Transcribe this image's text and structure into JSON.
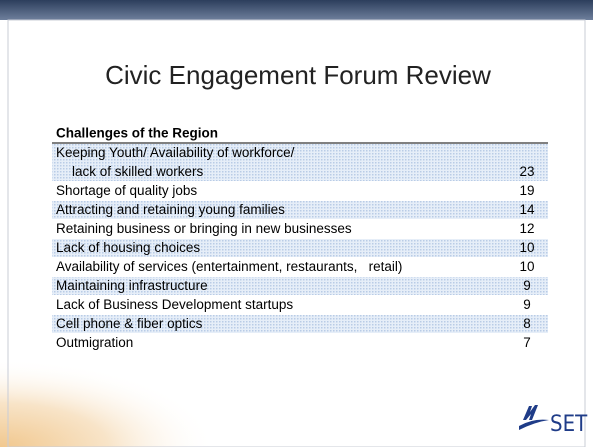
{
  "slide": {
    "title": "Civic Engagement Forum Review",
    "table": {
      "header": "Challenges of the Region",
      "rows": [
        {
          "lines": [
            "Keeping Youth/ Availability of workforce/",
            "lack of skilled workers"
          ],
          "count": "23"
        },
        {
          "lines": [
            "Shortage of quality jobs"
          ],
          "count": "19"
        },
        {
          "lines": [
            "Attracting and retaining young families"
          ],
          "count": "14"
        },
        {
          "lines": [
            "Retaining business or bringing in new businesses"
          ],
          "count": "12"
        },
        {
          "lines": [
            "Lack of housing choices"
          ],
          "count": "10"
        },
        {
          "lines": [
            "Availability of services (entertainment, restaurants,   retail)"
          ],
          "count": "10"
        },
        {
          "lines": [
            "Maintaining infrastructure"
          ],
          "count": "9"
        },
        {
          "lines": [
            "Lack of Business Development startups"
          ],
          "count": "9"
        },
        {
          "lines": [
            "Cell phone & fiber optics"
          ],
          "count": "8"
        },
        {
          "lines": [
            "Outmigration"
          ],
          "count": "7"
        }
      ]
    },
    "logo": "SET"
  }
}
